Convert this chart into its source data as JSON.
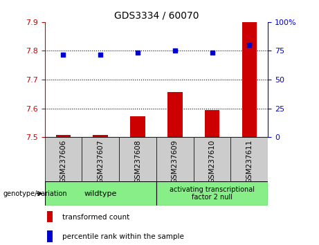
{
  "title": "GDS3334 / 60070",
  "categories": [
    "GSM237606",
    "GSM237607",
    "GSM237608",
    "GSM237609",
    "GSM237610",
    "GSM237611"
  ],
  "bar_values": [
    7.508,
    7.508,
    7.572,
    7.657,
    7.595,
    7.9
  ],
  "dot_values": [
    71.5,
    71.5,
    73.5,
    75.5,
    73.5,
    80.0
  ],
  "left_ylim": [
    7.5,
    7.9
  ],
  "left_yticks": [
    7.5,
    7.6,
    7.7,
    7.8,
    7.9
  ],
  "right_ylim": [
    0,
    100
  ],
  "right_yticks": [
    0,
    25,
    50,
    75,
    100
  ],
  "bar_color": "#cc0000",
  "dot_color": "#0000cc",
  "bar_base": 7.5,
  "grid_values": [
    7.6,
    7.7,
    7.8
  ],
  "wildtype_label": "wildtype",
  "atf2_label": "activating transcriptional\nfactor 2 null",
  "wildtype_indices": [
    0,
    1,
    2
  ],
  "atf2_indices": [
    3,
    4,
    5
  ],
  "group_color": "#88ee88",
  "tick_bg_color": "#cccccc",
  "legend_transformed": "transformed count",
  "legend_percentile": "percentile rank within the sample",
  "genotype_label": "genotype/variation",
  "title_fontsize": 10,
  "tick_fontsize": 8,
  "label_fontsize": 7.5,
  "legend_fontsize": 7.5
}
